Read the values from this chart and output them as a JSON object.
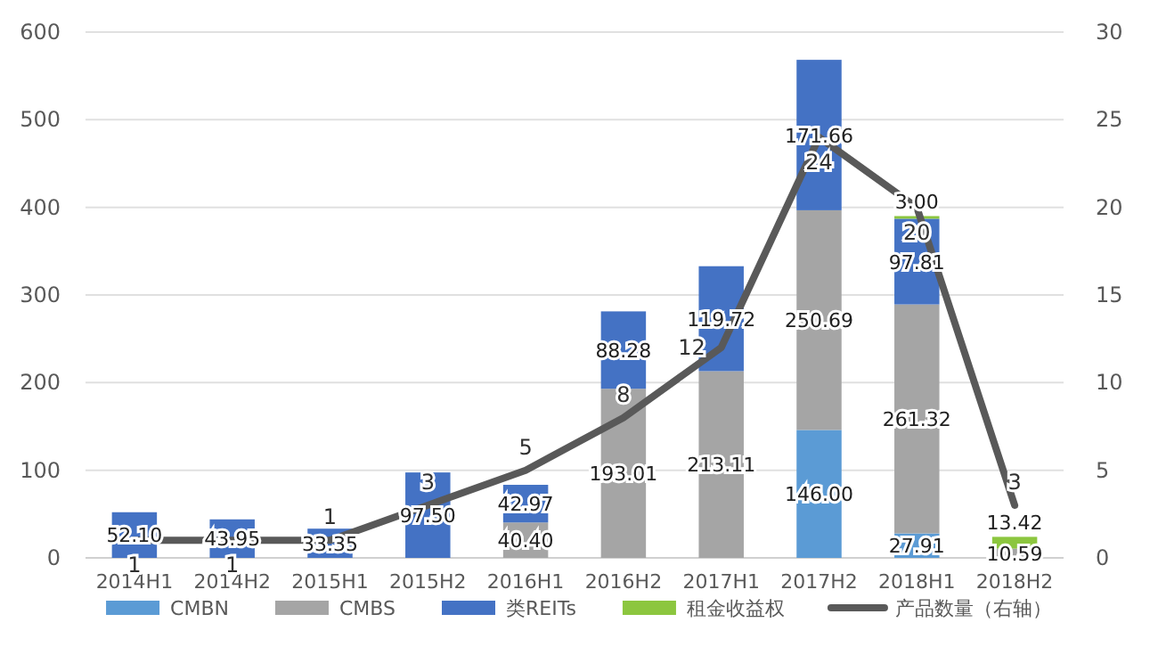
{
  "chart_data": {
    "type": "bar",
    "stacked": true,
    "categories": [
      "2014H1",
      "2014H2",
      "2015H1",
      "2015H2",
      "2016H1",
      "2016H2",
      "2017H1",
      "2017H2",
      "2018H1",
      "2018H2"
    ],
    "ylim": [
      0,
      600
    ],
    "yticks": [
      0,
      100,
      200,
      300,
      400,
      500,
      600
    ],
    "y2lim": [
      0,
      30
    ],
    "y2ticks": [
      0,
      5,
      10,
      15,
      20,
      25,
      30
    ],
    "grid": "y",
    "legend": "bottom",
    "series": [
      {
        "name": "CMBN",
        "color": "#5b9bd5",
        "values": [
          null,
          null,
          null,
          null,
          null,
          null,
          null,
          146.0,
          27.91,
          null
        ],
        "value_labels": [
          null,
          null,
          null,
          null,
          null,
          null,
          null,
          "146.00",
          "27.91",
          null
        ]
      },
      {
        "name": "CMBS",
        "color": "#a5a5a5",
        "values": [
          null,
          null,
          null,
          null,
          40.4,
          193.01,
          213.11,
          250.69,
          261.32,
          10.59
        ],
        "value_labels": [
          null,
          null,
          null,
          null,
          "40.40",
          "193.01",
          "213.11",
          "250.69",
          "261.32",
          "10.59"
        ]
      },
      {
        "name": "类REITs",
        "color": "#4472c4",
        "values": [
          52.1,
          43.95,
          33.35,
          97.5,
          42.97,
          88.28,
          119.72,
          171.66,
          97.81,
          null
        ],
        "value_labels": [
          "52.10",
          "43.95",
          "33.35",
          "97.50",
          "42.97",
          "88.28",
          "119.72",
          "171.66",
          "97.81",
          null
        ]
      },
      {
        "name": "租金收益权",
        "color": "#8cc63f",
        "values": [
          null,
          null,
          null,
          null,
          null,
          null,
          null,
          null,
          3.0,
          13.42
        ],
        "value_labels": [
          null,
          null,
          null,
          null,
          null,
          null,
          null,
          null,
          "3.00",
          "13.42"
        ]
      },
      {
        "name": "产品数量（右轴）",
        "type": "line",
        "axis": "y2",
        "color": "#595959",
        "values": [
          1,
          1,
          1,
          3,
          5,
          8,
          12,
          24,
          20,
          3
        ],
        "value_labels": [
          "1",
          "1",
          "1",
          "3",
          "5",
          "8",
          "12",
          "24",
          "20",
          "3"
        ]
      }
    ]
  }
}
